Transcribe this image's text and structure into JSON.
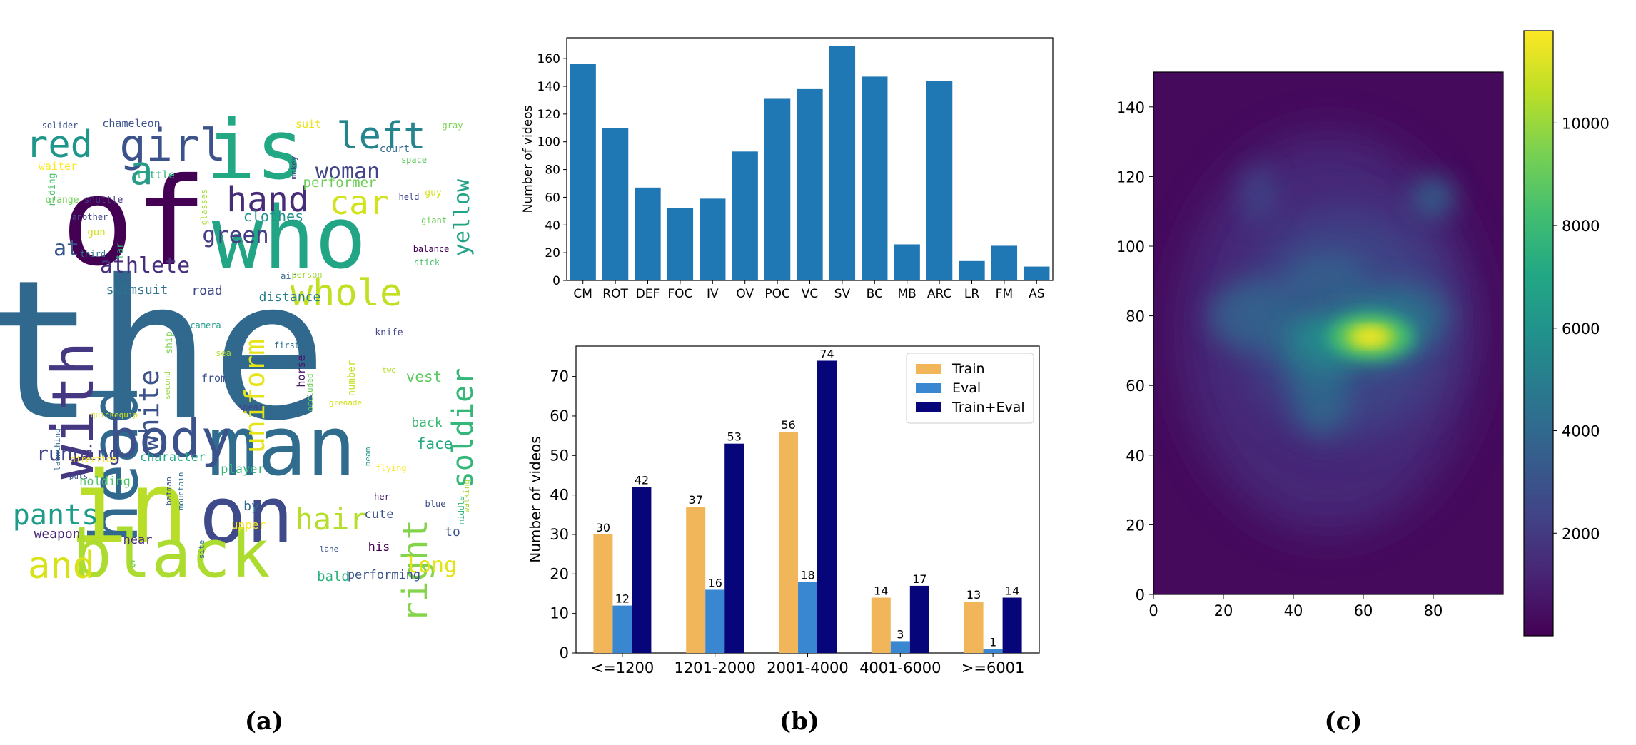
{
  "captions": {
    "a": "(a)",
    "b": "(b)",
    "c": "(c)"
  },
  "wordcloud": {
    "words": [
      {
        "text": "the",
        "color": "#31688e"
      },
      {
        "text": "of",
        "color": "#440154"
      },
      {
        "text": "who",
        "color": "#21a585"
      },
      {
        "text": "is",
        "color": "#23a884"
      },
      {
        "text": "head",
        "color": "#31688e"
      },
      {
        "text": "with",
        "color": "#453781"
      },
      {
        "text": "man",
        "color": "#2f6c8e"
      },
      {
        "text": "in",
        "color": "#b8de29"
      },
      {
        "text": "on",
        "color": "#3e4a89"
      },
      {
        "text": "black",
        "color": "#addc30"
      },
      {
        "text": "body",
        "color": "#3b528b"
      },
      {
        "text": "girl",
        "color": "#3b528b"
      },
      {
        "text": "a",
        "color": "#2a9a89"
      },
      {
        "text": "red",
        "color": "#1f968b"
      },
      {
        "text": "left",
        "color": "#25858e"
      },
      {
        "text": "hand",
        "color": "#472c7a"
      },
      {
        "text": "whole",
        "color": "#c2df23"
      },
      {
        "text": "car",
        "color": "#d2e21b"
      },
      {
        "text": "woman",
        "color": "#414487"
      },
      {
        "text": "pants",
        "color": "#1e9c89"
      },
      {
        "text": "and",
        "color": "#d8e219"
      },
      {
        "text": "hair",
        "color": "#b5de2b"
      },
      {
        "text": "right",
        "color": "#84d44b"
      },
      {
        "text": "soldier",
        "color": "#35b779"
      },
      {
        "text": "uniform",
        "color": "#e5e419"
      },
      {
        "text": "white",
        "color": "#3b528b"
      },
      {
        "text": "yellow",
        "color": "#20a386"
      },
      {
        "text": "green",
        "color": "#433e85"
      },
      {
        "text": "athlete",
        "color": "#472f7d"
      },
      {
        "text": "running",
        "color": "#404588"
      },
      {
        "text": "long",
        "color": "#e2e418"
      },
      {
        "text": "clothes",
        "color": "#21918c"
      },
      {
        "text": "performer",
        "color": "#6ece58"
      },
      {
        "text": "at",
        "color": "#39568c"
      },
      {
        "text": "swimsuit",
        "color": "#2c738e"
      },
      {
        "text": "road",
        "color": "#3e4989"
      },
      {
        "text": "distance",
        "color": "#277f8e"
      },
      {
        "text": "vest",
        "color": "#5ec962"
      },
      {
        "text": "face",
        "color": "#22a884"
      },
      {
        "text": "back",
        "color": "#3aba76"
      },
      {
        "text": "bald",
        "color": "#2db27d"
      },
      {
        "text": "performing",
        "color": "#3a548c"
      },
      {
        "text": "weapon",
        "color": "#482576"
      },
      {
        "text": "holding",
        "color": "#52c569"
      },
      {
        "text": "character",
        "color": "#23a983"
      },
      {
        "text": "player",
        "color": "#34b679"
      },
      {
        "text": "by",
        "color": "#31688e"
      },
      {
        "text": "cute",
        "color": "#3b528b"
      },
      {
        "text": "his",
        "color": "#440154"
      },
      {
        "text": "to",
        "color": "#3b528b"
      },
      {
        "text": "near",
        "color": "#472d7b"
      },
      {
        "text": "upper",
        "color": "#fde725"
      },
      {
        "text": "s",
        "color": "#6ece58"
      },
      {
        "text": "chameleon",
        "color": "#3b528b"
      },
      {
        "text": "little",
        "color": "#2fb47c"
      },
      {
        "text": "waiter",
        "color": "#fde725"
      },
      {
        "text": "orange",
        "color": "#73d056"
      },
      {
        "text": "shuttle",
        "color": "#453882"
      },
      {
        "text": "another",
        "color": "#414487"
      },
      {
        "text": "gun",
        "color": "#d0e11c"
      },
      {
        "text": "third",
        "color": "#2c728e"
      },
      {
        "text": "far",
        "color": "#31b57b"
      },
      {
        "text": "riding",
        "color": "#4ac16d"
      },
      {
        "text": "glasses",
        "color": "#a8db34"
      },
      {
        "text": "solider",
        "color": "#3b528b"
      },
      {
        "text": "suit",
        "color": "#e8e419"
      },
      {
        "text": "mokey",
        "color": "#414487"
      },
      {
        "text": "court",
        "color": "#31688e"
      },
      {
        "text": "space",
        "color": "#5ec962"
      },
      {
        "text": "gray",
        "color": "#7ad151"
      },
      {
        "text": "held",
        "color": "#404688"
      },
      {
        "text": "guy",
        "color": "#d8e219"
      },
      {
        "text": "giant",
        "color": "#6ece58"
      },
      {
        "text": "balance",
        "color": "#440154"
      },
      {
        "text": "stick",
        "color": "#4ac16d"
      },
      {
        "text": "air",
        "color": "#31688e"
      },
      {
        "text": "person",
        "color": "#a0da39"
      },
      {
        "text": "camera",
        "color": "#1f9e89"
      },
      {
        "text": "sea",
        "color": "#b5de2b"
      },
      {
        "text": "first",
        "color": "#2c728e"
      },
      {
        "text": "knife",
        "color": "#404588"
      },
      {
        "text": "ship",
        "color": "#7ad151"
      },
      {
        "text": "second",
        "color": "#95d840"
      },
      {
        "text": "from",
        "color": "#3b528b"
      },
      {
        "text": "horse",
        "color": "#481668"
      },
      {
        "text": "occluded",
        "color": "#6ece58"
      },
      {
        "text": "number",
        "color": "#c8e020"
      },
      {
        "text": "two",
        "color": "#b5de2b"
      },
      {
        "text": "grenade",
        "color": "#d0e11c"
      },
      {
        "text": "spear",
        "color": "#414487"
      },
      {
        "text": "quickequip",
        "color": "#d8e219"
      },
      {
        "text": "launching",
        "color": "#31688e"
      },
      {
        "text": "direction",
        "color": "#fde725"
      },
      {
        "text": "puts",
        "color": "#3b528b"
      },
      {
        "text": "batman",
        "color": "#3b528b"
      },
      {
        "text": "mountain",
        "color": "#2c728e"
      },
      {
        "text": "beam",
        "color": "#21918c"
      },
      {
        "text": "flying",
        "color": "#fde725"
      },
      {
        "text": "her",
        "color": "#481668"
      },
      {
        "text": "blue",
        "color": "#3e4989"
      },
      {
        "text": "middle",
        "color": "#2fb47c"
      },
      {
        "text": "walking",
        "color": "#a8db34"
      },
      {
        "text": "site",
        "color": "#31688e"
      },
      {
        "text": "lane",
        "color": "#3b528b"
      }
    ]
  },
  "chart_data": [
    {
      "type": "bar",
      "categories": [
        "CM",
        "ROT",
        "DEF",
        "FOC",
        "IV",
        "OV",
        "POC",
        "VC",
        "SV",
        "BC",
        "MB",
        "ARC",
        "LR",
        "FM",
        "AS"
      ],
      "values": [
        156,
        110,
        67,
        52,
        59,
        93,
        131,
        138,
        169,
        147,
        26,
        144,
        14,
        25,
        10
      ],
      "ylabel": "Number of videos",
      "ylim": [
        0,
        175
      ],
      "yticks": [
        0,
        20,
        40,
        60,
        80,
        100,
        120,
        140,
        160
      ],
      "color": "#1f77b4",
      "grid": false
    },
    {
      "type": "bar",
      "categories": [
        "<=1200",
        "1201-2000",
        "2001-4000",
        "4001-6000",
        ">=6001"
      ],
      "series": [
        {
          "name": "Train",
          "values": [
            30,
            37,
            56,
            14,
            13
          ],
          "color": "#f2b65a"
        },
        {
          "name": "Eval",
          "values": [
            12,
            16,
            18,
            3,
            1
          ],
          "color": "#3a87d1"
        },
        {
          "name": "Train+Eval",
          "values": [
            42,
            53,
            74,
            17,
            14
          ],
          "color": "#06067a"
        }
      ],
      "ylabel": "Number of videos",
      "ylim": [
        0,
        77.7
      ],
      "yticks": [
        0,
        10,
        20,
        30,
        40,
        50,
        60,
        70
      ],
      "legend": "top-right",
      "grid": false
    },
    {
      "type": "heatmap",
      "colormap": "viridis",
      "xlim": [
        0,
        100
      ],
      "ylim": [
        0,
        150
      ],
      "xticks": [
        0,
        20,
        40,
        60,
        80
      ],
      "yticks": [
        0,
        20,
        40,
        60,
        80,
        100,
        120,
        140
      ],
      "colorbar_ticks": [
        2000,
        4000,
        6000,
        8000,
        10000
      ],
      "colorbar_range": [
        0,
        11800
      ],
      "hotspots": [
        {
          "x": 62,
          "y": 74,
          "value": 11500
        },
        {
          "x": 58,
          "y": 74,
          "value": 3500
        },
        {
          "x": 80,
          "y": 114,
          "value": 2000
        },
        {
          "x": 48,
          "y": 58,
          "value": 2000
        },
        {
          "x": 30,
          "y": 80,
          "value": 1500
        },
        {
          "x": 50,
          "y": 90,
          "value": 1500
        }
      ]
    }
  ]
}
